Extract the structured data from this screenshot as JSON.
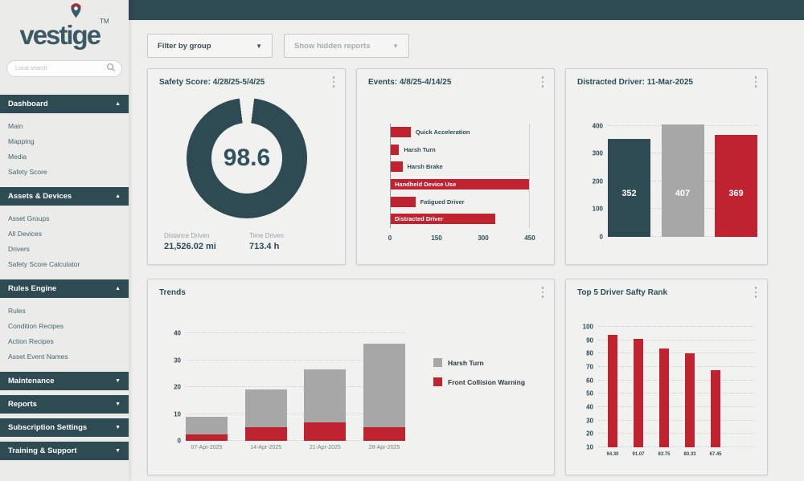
{
  "app": {
    "logo_text": "vestige",
    "logo_tm": "TM",
    "search_placeholder": "Local search"
  },
  "sidebar": {
    "sections": [
      {
        "label": "Dashboard",
        "expanded": true,
        "items": [
          "Main",
          "Mapping",
          "Media",
          "Safety Score"
        ]
      },
      {
        "label": "Assets & Devices",
        "expanded": true,
        "items": [
          "Asset Groups",
          "All Devices",
          "Drivers",
          "Safety Score Calculator"
        ]
      },
      {
        "label": "Rules Engine",
        "expanded": true,
        "items": [
          "Rules",
          "Condition Recipes",
          "Action Recipes",
          "Asset Event Names"
        ]
      },
      {
        "label": "Maintenance",
        "expanded": false,
        "items": []
      },
      {
        "label": "Reports",
        "expanded": false,
        "items": []
      },
      {
        "label": "Subscription Settings",
        "expanded": false,
        "items": []
      },
      {
        "label": "Training & Support",
        "expanded": false,
        "items": []
      }
    ]
  },
  "toolbar": {
    "filter_by_group": "Filter by group",
    "show_hidden_reports": "Show hidden reports"
  },
  "cards": {
    "safety_score": {
      "title": "Safety Score: 4/28/25-5/4/25",
      "score": "98.6",
      "distance_label": "Distance Driven",
      "distance_value": "21,526.02 mi",
      "time_label": "Time Driven",
      "time_value": "713.4 h"
    },
    "events": {
      "title": "Events: 4/8/25-4/14/25"
    },
    "distracted": {
      "title": "Distracted Driver: 11-Mar-2025"
    },
    "trends": {
      "title": "Trends"
    },
    "top5": {
      "title": "Top 5 Driver Safty Rank"
    }
  },
  "chart_data": [
    {
      "id": "safety-donut",
      "type": "pie",
      "title": "Safety Score: 4/28/25-5/4/25",
      "values": [
        98.6
      ],
      "max": 100,
      "center_label": "98.6",
      "gap_degrees": 14,
      "ring_color": "#2e4a52"
    },
    {
      "id": "events-bar",
      "type": "bar",
      "orientation": "horizontal",
      "title": "Events: 4/8/25-4/14/25",
      "categories": [
        "Quick Acceleration",
        "Harsh Turn",
        "Harsh Brake",
        "Handheld Device Use",
        "Fatigued Driver",
        "Distracted Driver"
      ],
      "values": [
        65,
        27,
        38,
        450,
        80,
        340
      ],
      "label_inside": [
        false,
        false,
        false,
        true,
        false,
        true
      ],
      "xlim": [
        0,
        450
      ],
      "xticks": [
        0,
        150,
        300,
        450
      ],
      "bar_color": "#bf2330",
      "grid": false
    },
    {
      "id": "distracted-bar",
      "type": "bar",
      "title": "Distracted Driver: 11-Mar-2025",
      "categories": [
        "",
        "",
        ""
      ],
      "values": [
        352,
        407,
        369
      ],
      "value_labels": [
        "352",
        "407",
        "369"
      ],
      "colors": [
        "#2e4a52",
        "#a7a7a7",
        "#bf2330"
      ],
      "ylim": [
        0,
        400
      ],
      "yticks": [
        0,
        100,
        200,
        300,
        400
      ],
      "grid": true
    },
    {
      "id": "trends-stacked",
      "type": "bar",
      "stacked": true,
      "title": "Trends",
      "categories": [
        "07-Apr-2025",
        "14-Apr-2025",
        "21-Apr-2025",
        "28-Apr-2025"
      ],
      "series": [
        {
          "name": "Front Collision Warning",
          "color": "#bf2330",
          "values": [
            2.5,
            5,
            7,
            5
          ]
        },
        {
          "name": "Harsh Turn",
          "color": "#a7a7a7",
          "values": [
            6.5,
            14,
            19.5,
            31
          ]
        }
      ],
      "ylim": [
        0,
        40
      ],
      "yticks": [
        0,
        10,
        20,
        30,
        40
      ],
      "grid": true,
      "legend_position": "right",
      "legend_order": [
        "Harsh Turn",
        "Front Collision Warning"
      ]
    },
    {
      "id": "top5-bar",
      "type": "bar",
      "title": "Top 5 Driver Safty Rank",
      "categories": [
        "94.30",
        "91.07",
        "83.75",
        "80.33",
        "67.45"
      ],
      "values": [
        94.3,
        91.07,
        83.75,
        80.33,
        67.45
      ],
      "bar_color": "#bf2330",
      "ylim": [
        10,
        100
      ],
      "yticks": [
        10,
        20,
        30,
        40,
        50,
        60,
        70,
        80,
        90,
        100
      ],
      "grid": true
    }
  ],
  "colors": {
    "teal": "#2e4a52",
    "red": "#bf2330",
    "gray_bar": "#a7a7a7",
    "card_bg": "#f1f2f0"
  }
}
